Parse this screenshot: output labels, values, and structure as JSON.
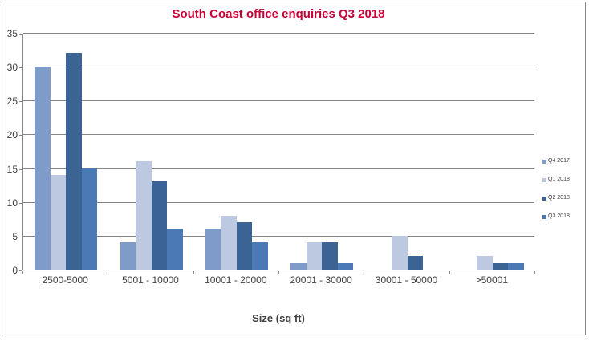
{
  "chart_data": {
    "type": "bar",
    "title": "South Coast office enquiries Q3 2018",
    "xlabel": "Size (sq ft)",
    "ylabel": "",
    "categories": [
      "2500-5000",
      "5001 - 10000",
      "10001 - 20000",
      "20001 - 30000",
      "30001 - 50000",
      ">50001"
    ],
    "series": [
      {
        "name": "Q4 2017",
        "color": "#7E9BC9",
        "values": [
          30,
          4,
          6,
          1,
          0,
          0
        ]
      },
      {
        "name": "Q1 2018",
        "color": "#BDC9E1",
        "values": [
          14,
          16,
          8,
          4,
          5,
          2
        ]
      },
      {
        "name": "Q2 2018",
        "color": "#3B6394",
        "values": [
          32,
          13,
          7,
          4,
          2,
          1
        ]
      },
      {
        "name": "Q3 2018",
        "color": "#4B79B5",
        "values": [
          15,
          6,
          4,
          1,
          0,
          1
        ]
      }
    ],
    "ylim": [
      0,
      35
    ],
    "yticks": [
      0,
      5,
      10,
      15,
      20,
      25,
      30,
      35
    ],
    "grid": true,
    "legend_position": "right",
    "colors": {
      "title": "#C80038",
      "grid": "#868686",
      "axis": "#868686",
      "tick_label": "#404040",
      "axis_title": "#404040",
      "legend_text": "#404040"
    }
  }
}
